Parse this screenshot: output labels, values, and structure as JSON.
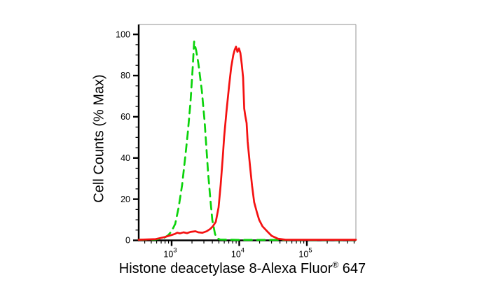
{
  "figure": {
    "background": "#ffffff",
    "frame_color": "#a6a6a6",
    "axis_color": "#000000",
    "tick_label_color": "#000000"
  },
  "chart_data": {
    "type": "line",
    "title": "",
    "xlabel": "Histone deacetylase 8-Alexa Fluor® 647",
    "xlabel_parts": {
      "main": "Histone deacetylase 8-Alexa Fluor",
      "sup": "®",
      "suffix": " 647"
    },
    "ylabel": "Cell Counts (% Max)",
    "x_scale": "log",
    "grid": "off",
    "legend": "none",
    "xlim": [
      326,
      531000
    ],
    "ylim": [
      0,
      104.8
    ],
    "x_major_ticks": [
      1000,
      10000,
      100000
    ],
    "x_major_tick_labels": [
      "10^3",
      "10^4",
      "10^5"
    ],
    "x_minor_tick_pattern": [
      2,
      3,
      4,
      5,
      6,
      7,
      8,
      9
    ],
    "y_major_ticks": [
      0,
      20,
      40,
      60,
      80,
      100
    ],
    "y_major_tick_labels": [
      "0",
      "20",
      "40",
      "60",
      "80",
      "100"
    ],
    "y_minor_step": 5,
    "series": [
      {
        "name": "green-dashed-curve",
        "style": "dashed",
        "color": "#0bd30b",
        "dash": [
          11,
          7.5
        ],
        "width": 2.7,
        "points": [
          [
            326,
            0.3
          ],
          [
            578,
            0.4
          ],
          [
            770,
            1.2
          ],
          [
            890,
            2.5
          ],
          [
            1000,
            4.5
          ],
          [
            1130,
            8
          ],
          [
            1270,
            16
          ],
          [
            1430,
            27
          ],
          [
            1610,
            42
          ],
          [
            1730,
            52
          ],
          [
            1900,
            67
          ],
          [
            2050,
            84
          ],
          [
            2150,
            96.5
          ],
          [
            2310,
            92
          ],
          [
            2480,
            86
          ],
          [
            2790,
            73
          ],
          [
            3070,
            58
          ],
          [
            3220,
            48
          ],
          [
            3460,
            33
          ],
          [
            3720,
            21
          ],
          [
            3990,
            10
          ],
          [
            4390,
            3
          ],
          [
            4720,
            1
          ],
          [
            5190,
            0.4
          ],
          [
            10000,
            0.2
          ],
          [
            40000,
            0.2
          ],
          [
            531000,
            0.2
          ]
        ]
      },
      {
        "name": "red-solid-curve",
        "style": "solid",
        "color": "#f41111",
        "dash": null,
        "width": 2.7,
        "points": [
          [
            326,
            0.3
          ],
          [
            580,
            0.6
          ],
          [
            790,
            1.6
          ],
          [
            1000,
            2.6
          ],
          [
            1130,
            3.2
          ],
          [
            1210,
            3.7
          ],
          [
            1330,
            3.4
          ],
          [
            1500,
            3.9
          ],
          [
            1690,
            3.5
          ],
          [
            1905,
            4.1
          ],
          [
            2250,
            4.4
          ],
          [
            2480,
            3.9
          ],
          [
            2860,
            3.7
          ],
          [
            3300,
            4.4
          ],
          [
            3715,
            5.5
          ],
          [
            4090,
            6.9
          ],
          [
            4500,
            9
          ],
          [
            4950,
            16
          ],
          [
            5310,
            27
          ],
          [
            5700,
            40
          ],
          [
            5980,
            50
          ],
          [
            6440,
            62
          ],
          [
            7080,
            75
          ],
          [
            7600,
            84
          ],
          [
            8170,
            90
          ],
          [
            8560,
            92.5
          ],
          [
            8970,
            94
          ],
          [
            9400,
            91.5
          ],
          [
            9910,
            93.2
          ],
          [
            10380,
            91
          ],
          [
            10900,
            85.5
          ],
          [
            11400,
            79
          ],
          [
            11840,
            64
          ],
          [
            12270,
            60.5
          ],
          [
            12860,
            57
          ],
          [
            13300,
            48
          ],
          [
            14430,
            36
          ],
          [
            15490,
            26.5
          ],
          [
            16630,
            18.5
          ],
          [
            18300,
            13.5
          ],
          [
            19700,
            10
          ],
          [
            22100,
            6.8
          ],
          [
            26000,
            4.3
          ],
          [
            30100,
            2.2
          ],
          [
            37300,
            0.8
          ],
          [
            48500,
            0.3
          ],
          [
            531000,
            0.3
          ]
        ]
      }
    ]
  }
}
